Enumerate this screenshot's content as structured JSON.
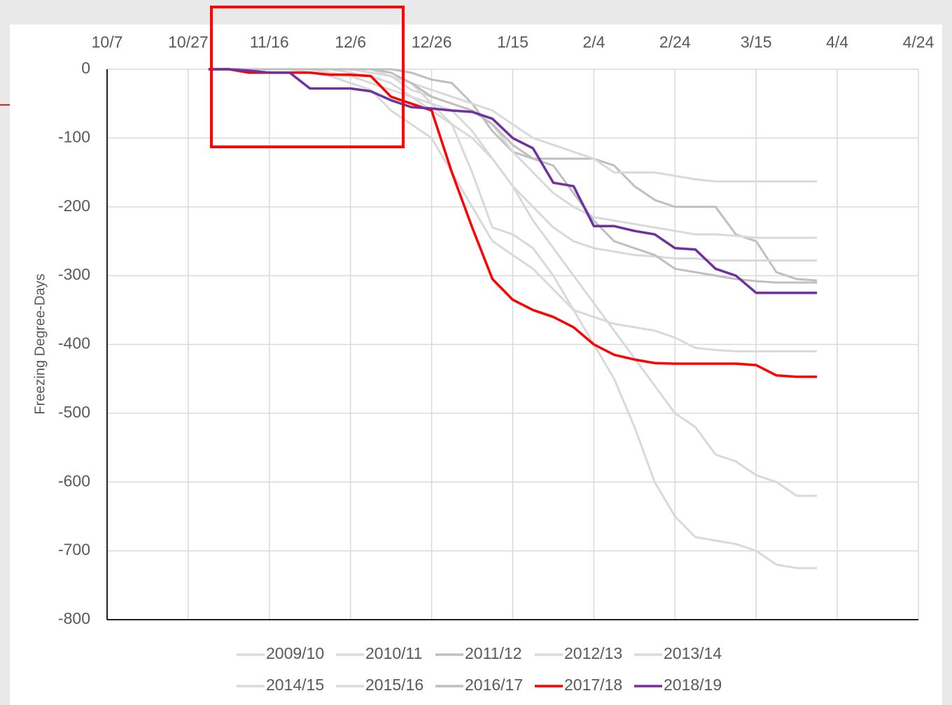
{
  "chart_data": {
    "type": "line",
    "y_label": "Freezing Degree-Days",
    "x": [
      25,
      30,
      35,
      40,
      45,
      50,
      55,
      60,
      65,
      70,
      75,
      80,
      85,
      90,
      95,
      100,
      105,
      110,
      115,
      120,
      125,
      130,
      135,
      140,
      145,
      150,
      155,
      160,
      165,
      170,
      175
    ],
    "xlim": [
      0,
      200
    ],
    "xticks": [
      {
        "value": 0,
        "label": "10/7"
      },
      {
        "value": 20,
        "label": "10/27"
      },
      {
        "value": 40,
        "label": "11/16"
      },
      {
        "value": 60,
        "label": "12/6"
      },
      {
        "value": 80,
        "label": "12/26"
      },
      {
        "value": 100,
        "label": "1/15"
      },
      {
        "value": 120,
        "label": "2/4"
      },
      {
        "value": 140,
        "label": "2/24"
      },
      {
        "value": 160,
        "label": "3/15"
      },
      {
        "value": 180,
        "label": "4/4"
      },
      {
        "value": 200,
        "label": "4/24"
      }
    ],
    "ylim": [
      -800,
      0
    ],
    "yticks": [
      0,
      -100,
      -200,
      -300,
      -400,
      -500,
      -600,
      -700,
      -800
    ],
    "grid": true,
    "series": [
      {
        "name": "2009/10",
        "color": "#d9d9d9",
        "values": [
          0,
          0,
          0,
          0,
          0,
          0,
          -5,
          -10,
          -20,
          -30,
          -40,
          -60,
          -80,
          -100,
          -130,
          -170,
          -220,
          -260,
          -300,
          -340,
          -380,
          -420,
          -460,
          -500,
          -520,
          -560,
          -570,
          -590,
          -600,
          -620,
          -620
        ]
      },
      {
        "name": "2010/11",
        "color": "#d9d9d9",
        "values": [
          0,
          0,
          0,
          0,
          0,
          0,
          0,
          0,
          -5,
          -10,
          -20,
          -50,
          -80,
          -150,
          -230,
          -240,
          -260,
          -300,
          -350,
          -400,
          -450,
          -520,
          -600,
          -650,
          -680,
          -685,
          -690,
          -700,
          -720,
          -725,
          -725
        ]
      },
      {
        "name": "2011/12",
        "color": "#bfbfbf",
        "values": [
          0,
          0,
          0,
          0,
          0,
          0,
          0,
          0,
          0,
          0,
          -5,
          -15,
          -20,
          -50,
          -90,
          -120,
          -130,
          -130,
          -130,
          -130,
          -140,
          -170,
          -190,
          -200,
          -200,
          -200,
          -240,
          -250,
          -295,
          -305,
          -307
        ]
      },
      {
        "name": "2012/13",
        "color": "#d9d9d9",
        "values": [
          0,
          0,
          0,
          0,
          0,
          0,
          0,
          0,
          -5,
          -10,
          -20,
          -30,
          -40,
          -50,
          -60,
          -80,
          -100,
          -110,
          -120,
          -130,
          -150,
          -150,
          -150,
          -155,
          -160,
          -163,
          -163,
          -163,
          -163,
          -163,
          -163
        ]
      },
      {
        "name": "2013/14",
        "color": "#d9d9d9",
        "values": [
          0,
          0,
          0,
          0,
          0,
          0,
          0,
          0,
          0,
          -10,
          -30,
          -40,
          -50,
          -60,
          -80,
          -120,
          -150,
          -180,
          -200,
          -215,
          -220,
          -225,
          -230,
          -235,
          -240,
          -240,
          -242,
          -245,
          -245,
          -245,
          -245
        ]
      },
      {
        "name": "2014/15",
        "color": "#d9d9d9",
        "values": [
          0,
          0,
          0,
          0,
          0,
          -5,
          -10,
          -20,
          -30,
          -60,
          -80,
          -100,
          -150,
          -200,
          -250,
          -270,
          -290,
          -320,
          -350,
          -360,
          -370,
          -375,
          -380,
          -390,
          -405,
          -408,
          -410,
          -410,
          -410,
          -410,
          -410
        ]
      },
      {
        "name": "2015/16",
        "color": "#d9d9d9",
        "values": [
          0,
          0,
          0,
          0,
          0,
          0,
          0,
          -5,
          -10,
          -20,
          -40,
          -50,
          -60,
          -90,
          -130,
          -170,
          -200,
          -230,
          -250,
          -260,
          -265,
          -270,
          -272,
          -275,
          -275,
          -278,
          -278,
          -278,
          -278,
          -278,
          -278
        ]
      },
      {
        "name": "2016/17",
        "color": "#bfbfbf",
        "values": [
          0,
          0,
          0,
          0,
          0,
          0,
          0,
          0,
          0,
          -5,
          -20,
          -40,
          -50,
          -60,
          -80,
          -110,
          -130,
          -140,
          -180,
          -220,
          -250,
          -260,
          -270,
          -290,
          -295,
          -300,
          -305,
          -308,
          -310,
          -310,
          -310
        ]
      },
      {
        "name": "2017/18",
        "color": "#ff0000",
        "values": [
          0,
          0,
          -5,
          -5,
          -5,
          -5,
          -8,
          -8,
          -10,
          -40,
          -50,
          -60,
          -150,
          -230,
          -305,
          -335,
          -350,
          -360,
          -375,
          -400,
          -415,
          -422,
          -427,
          -428,
          -428,
          -428,
          -428,
          -430,
          -445,
          -447,
          -447
        ]
      },
      {
        "name": "2018/19",
        "color": "#7030a0",
        "values": [
          0,
          0,
          -2,
          -5,
          -5,
          -28,
          -28,
          -28,
          -32,
          -45,
          -55,
          -57,
          -60,
          -62,
          -72,
          -100,
          -115,
          -165,
          -170,
          -228,
          -228,
          -235,
          -240,
          -260,
          -262,
          -290,
          -300,
          -325,
          -325,
          -325,
          -325
        ]
      }
    ]
  }
}
